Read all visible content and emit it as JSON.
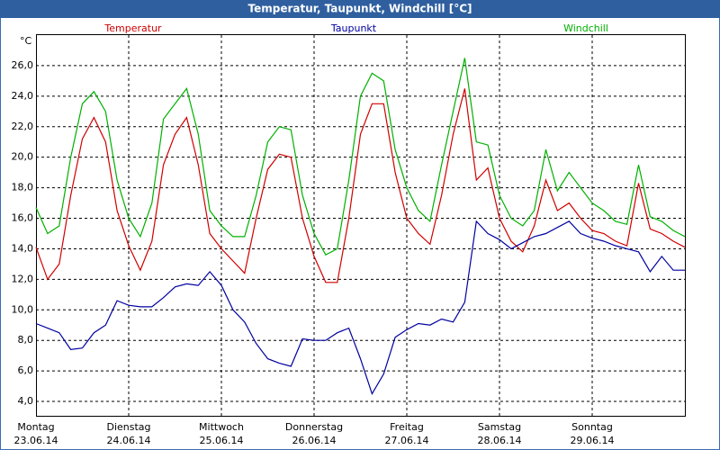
{
  "chart_data": {
    "type": "line",
    "title": "Temperatur, Taupunkt, Windchill [°C]",
    "unit": "°C",
    "ylim": [
      3,
      28
    ],
    "yticks": [
      {
        "value": 4,
        "label": "4,0"
      },
      {
        "value": 6,
        "label": "6,0"
      },
      {
        "value": 8,
        "label": "8,0"
      },
      {
        "value": 10,
        "label": "10,0"
      },
      {
        "value": 12,
        "label": "12,0"
      },
      {
        "value": 14,
        "label": "14,0"
      },
      {
        "value": 16,
        "label": "16,0"
      },
      {
        "value": 18,
        "label": "18,0"
      },
      {
        "value": 20,
        "label": "20,0"
      },
      {
        "value": 22,
        "label": "22,0"
      },
      {
        "value": 24,
        "label": "24,0"
      },
      {
        "value": 26,
        "label": "26,0"
      }
    ],
    "grid": true,
    "x_labels": [
      {
        "weekday": "Montag",
        "date": "23.06.14"
      },
      {
        "weekday": "Dienstag",
        "date": "24.06.14"
      },
      {
        "weekday": "Mittwoch",
        "date": "25.06.14"
      },
      {
        "weekday": "Donnerstag",
        "date": "26.06.14"
      },
      {
        "weekday": "Freitag",
        "date": "27.06.14"
      },
      {
        "weekday": "Samstag",
        "date": "28.06.14"
      },
      {
        "weekday": "Sonntag",
        "date": "29.06.14"
      }
    ],
    "series": [
      {
        "name": "Temperatur",
        "color": "#d00000",
        "values": [
          14.1,
          12.0,
          13.0,
          17.5,
          21.2,
          22.6,
          21.0,
          16.5,
          14.2,
          12.6,
          14.5,
          19.5,
          21.5,
          22.6,
          19.5,
          15.0,
          14.0,
          13.2,
          12.4,
          16.0,
          19.2,
          20.2,
          20.0,
          16.0,
          13.5,
          11.8,
          11.8,
          16.0,
          21.5,
          23.5,
          23.5,
          19.0,
          16.0,
          15.0,
          14.3,
          17.5,
          21.5,
          24.5,
          18.5,
          19.3,
          16.0,
          14.5,
          13.8,
          15.5,
          18.5,
          16.5,
          17.0,
          16.0,
          15.2,
          15.0,
          14.5,
          14.2,
          18.3,
          15.3,
          15.0,
          14.5,
          14.1
        ]
      },
      {
        "name": "Taupunkt",
        "color": "#0000a0",
        "values": [
          9.1,
          8.8,
          8.5,
          7.4,
          7.5,
          8.5,
          9.0,
          10.6,
          10.3,
          10.2,
          10.2,
          10.8,
          11.5,
          11.7,
          11.6,
          12.5,
          11.6,
          10.0,
          9.2,
          7.8,
          6.8,
          6.5,
          6.3,
          8.1,
          8.0,
          8.0,
          8.5,
          8.8,
          6.8,
          4.5,
          5.8,
          8.2,
          8.7,
          9.1,
          9.0,
          9.4,
          9.2,
          10.5,
          15.8,
          15.0,
          14.6,
          14.0,
          14.4,
          14.8,
          15.0,
          15.4,
          15.8,
          15.0,
          14.7,
          14.5,
          14.2,
          14.0,
          13.8,
          12.5,
          13.5,
          12.6,
          12.6
        ]
      },
      {
        "name": "Windchill",
        "color": "#00b000",
        "values": [
          16.7,
          15.0,
          15.5,
          20.0,
          23.5,
          24.3,
          23.0,
          18.5,
          16.0,
          14.8,
          17.0,
          22.5,
          23.5,
          24.5,
          21.5,
          16.5,
          15.5,
          14.8,
          14.8,
          17.5,
          21.0,
          22.0,
          21.8,
          17.5,
          15.0,
          13.6,
          14.0,
          18.5,
          24.0,
          25.5,
          25.0,
          20.5,
          18.0,
          16.5,
          15.8,
          19.5,
          23.0,
          26.5,
          21.0,
          20.8,
          17.5,
          16.0,
          15.5,
          16.5,
          20.5,
          17.8,
          19.0,
          18.0,
          17.0,
          16.5,
          15.8,
          15.6,
          19.5,
          16.1,
          15.8,
          15.2,
          14.8
        ]
      }
    ]
  }
}
